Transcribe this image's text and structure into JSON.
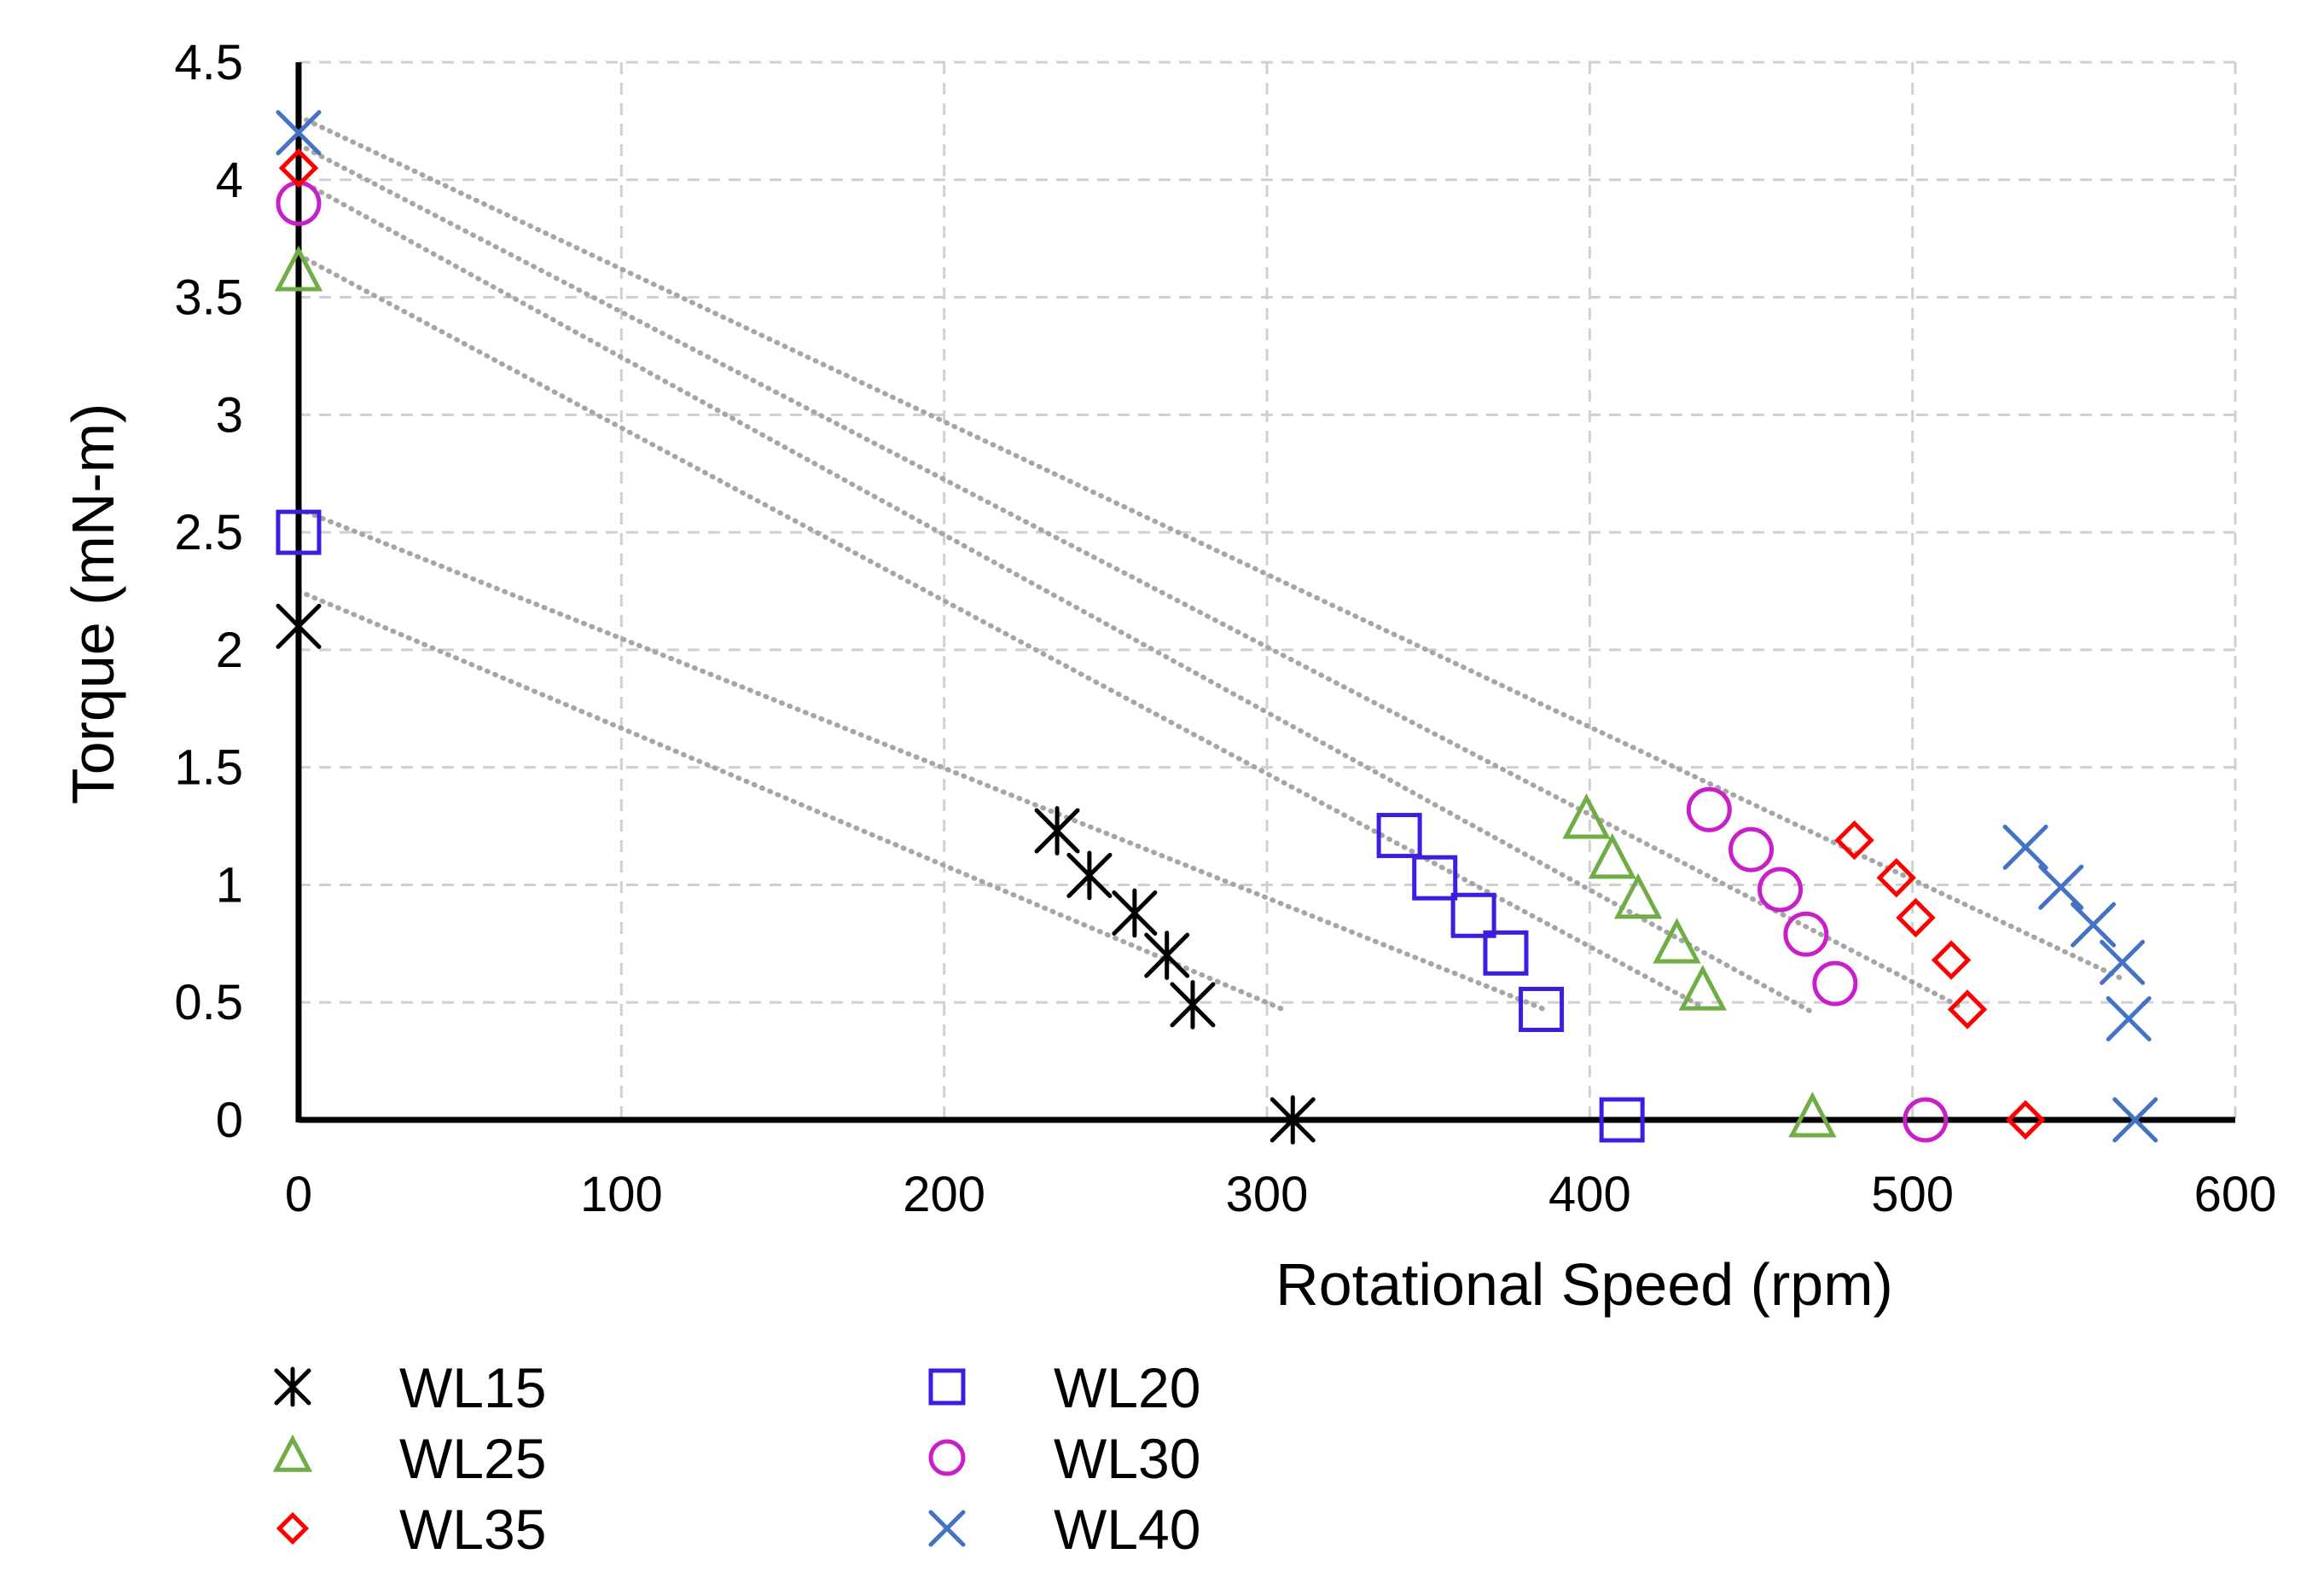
{
  "chart_data": {
    "type": "scatter",
    "title": "",
    "xlabel": "Rotational Speed (rpm)",
    "ylabel": "Torque (mN-m)",
    "xlim": [
      0,
      600
    ],
    "ylim": [
      0,
      4.5
    ],
    "xticks": [
      "0",
      "100",
      "200",
      "300",
      "400",
      "500",
      "600"
    ],
    "yticks": [
      "0",
      "0.5",
      "1",
      "1.5",
      "2",
      "2.5",
      "3",
      "3.5",
      "4",
      "4.5"
    ],
    "grid": true,
    "legend_position": "bottom",
    "series": [
      {
        "name": "WL15",
        "marker": "asterisk",
        "color": "#000000",
        "points": [
          [
            0,
            2.1
          ],
          [
            235,
            1.23
          ],
          [
            245,
            1.04
          ],
          [
            259,
            0.88
          ],
          [
            269,
            0.7
          ],
          [
            277,
            0.49
          ],
          [
            308,
            0
          ]
        ],
        "trendline": [
          [
            0,
            2.25
          ],
          [
            305,
            0.47
          ]
        ]
      },
      {
        "name": "WL20",
        "marker": "square",
        "color": "#3a1fe0",
        "points": [
          [
            0,
            2.5
          ],
          [
            341,
            1.21
          ],
          [
            352,
            1.03
          ],
          [
            364,
            0.87
          ],
          [
            374,
            0.71
          ],
          [
            385,
            0.47
          ],
          [
            410,
            0
          ]
        ],
        "trendline": [
          [
            0,
            2.6
          ],
          [
            386,
            0.47
          ]
        ]
      },
      {
        "name": "WL25",
        "marker": "triangle",
        "color": "#70ad47",
        "points": [
          [
            0,
            3.6
          ],
          [
            399,
            1.27
          ],
          [
            407,
            1.1
          ],
          [
            415,
            0.93
          ],
          [
            427,
            0.74
          ],
          [
            435,
            0.54
          ],
          [
            469,
            0
          ]
        ],
        "trendline": [
          [
            0,
            3.68
          ],
          [
            435,
            0.48
          ]
        ]
      },
      {
        "name": "WL30",
        "marker": "circle",
        "color": "#c91fc9",
        "points": [
          [
            0,
            3.9
          ],
          [
            437,
            1.32
          ],
          [
            450,
            1.15
          ],
          [
            459,
            0.98
          ],
          [
            467,
            0.79
          ],
          [
            476,
            0.58
          ],
          [
            504,
            0
          ]
        ],
        "trendline": [
          [
            0,
            4.0
          ],
          [
            470,
            0.45
          ]
        ]
      },
      {
        "name": "WL35",
        "marker": "diamond",
        "color": "#ff0000",
        "points": [
          [
            0,
            4.05
          ],
          [
            482,
            1.19
          ],
          [
            495,
            1.03
          ],
          [
            501,
            0.86
          ],
          [
            512,
            0.68
          ],
          [
            517,
            0.47
          ],
          [
            535,
            0
          ]
        ],
        "trendline": [
          [
            0,
            4.15
          ],
          [
            515,
            0.48
          ]
        ]
      },
      {
        "name": "WL40",
        "marker": "x",
        "color": "#4472c4",
        "points": [
          [
            0,
            4.2
          ],
          [
            535,
            1.16
          ],
          [
            546,
            0.99
          ],
          [
            556,
            0.83
          ],
          [
            565,
            0.67
          ],
          [
            567,
            0.43
          ],
          [
            569,
            0
          ]
        ],
        "trendline": [
          [
            0,
            4.27
          ],
          [
            565,
            0.6
          ]
        ]
      }
    ]
  }
}
